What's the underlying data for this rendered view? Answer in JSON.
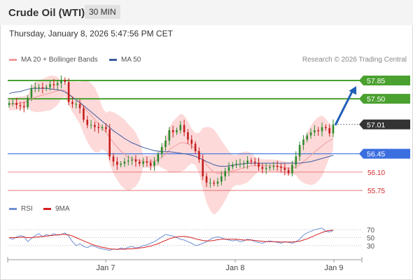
{
  "header": {
    "title": "Crude Oil (WTI)",
    "timeframe": "30 MIN",
    "datetime": "Thursday, January 8, 2026 5:47:56 PM CET"
  },
  "legend": {
    "ma20_label": "MA 20 + Bollinger Bands",
    "ma50_label": "MA 50",
    "credit": "Research © 2026 Trading Central",
    "rsi_label": "RSI",
    "ma9_label": "9MA"
  },
  "colors": {
    "band_fill": "#fdd9d9",
    "ma20": "#f29a9a",
    "ma50": "#3d5aa0",
    "up_candle": "#2e8b2e",
    "down_candle": "#c41e1e",
    "resistance": "#4aa12f",
    "pivot": "#3b6fe0",
    "support": "#e06060",
    "arrow": "#2160b8",
    "current_tag": "#333333",
    "rsi": "#6f8fd6",
    "rsi_ma": "#d62020"
  },
  "chart_data": [
    {
      "type": "candlestick",
      "title": "Crude Oil (WTI)",
      "timeframe": "30 MIN",
      "x_labels": [
        "Jan 7",
        "Jan 8",
        "Jan 9"
      ],
      "ylim": [
        55.55,
        58.05
      ],
      "price_levels": [
        {
          "value": 57.85,
          "label": "57.85",
          "kind": "resistance"
        },
        {
          "value": 57.5,
          "label": "57.50",
          "kind": "resistance"
        },
        {
          "value": 57.01,
          "label": "57.01",
          "kind": "current"
        },
        {
          "value": 56.45,
          "label": "56.45",
          "kind": "pivot"
        },
        {
          "value": 56.1,
          "label": "56.10",
          "kind": "support"
        },
        {
          "value": 55.75,
          "label": "55.75",
          "kind": "support"
        }
      ],
      "closes": [
        57.42,
        57.42,
        57.38,
        57.36,
        57.34,
        57.52,
        57.7,
        57.72,
        57.72,
        57.7,
        57.72,
        57.78,
        57.76,
        57.8,
        57.86,
        57.82,
        57.44,
        57.4,
        57.4,
        57.32,
        57.1,
        57.0,
        57.0,
        56.96,
        56.94,
        56.96,
        56.92,
        56.4,
        56.3,
        56.24,
        56.26,
        56.3,
        56.32,
        56.34,
        56.3,
        56.26,
        56.3,
        56.28,
        56.22,
        56.3,
        56.44,
        56.58,
        56.7,
        56.9,
        56.86,
        56.9,
        57.0,
        56.86,
        56.72,
        56.64,
        56.5,
        56.34,
        56.02,
        55.9,
        55.9,
        55.88,
        55.92,
        56.02,
        56.12,
        56.2,
        56.24,
        56.26,
        56.26,
        56.26,
        56.32,
        56.3,
        56.28,
        56.2,
        56.16,
        56.18,
        56.2,
        56.22,
        56.2,
        56.18,
        56.14,
        56.08,
        56.24,
        56.4,
        56.62,
        56.72,
        56.8,
        56.86,
        56.9,
        56.88,
        56.96,
        56.94,
        56.84,
        57.01
      ],
      "ma20": [
        57.4,
        57.4,
        57.41,
        57.42,
        57.43,
        57.46,
        57.5,
        57.53,
        57.55,
        57.57,
        57.59,
        57.61,
        57.63,
        57.65,
        57.67,
        57.66,
        57.6,
        57.54,
        57.48,
        57.42,
        57.34,
        57.26,
        57.18,
        57.1,
        57.02,
        56.94,
        56.86,
        56.76,
        56.66,
        56.58,
        56.5,
        56.44,
        56.38,
        56.36,
        56.34,
        56.32,
        56.31,
        56.3,
        56.3,
        56.31,
        56.34,
        56.38,
        56.44,
        56.52,
        56.58,
        56.62,
        56.66,
        56.66,
        56.64,
        56.6,
        56.54,
        56.46,
        56.36,
        56.24,
        56.16,
        56.1,
        56.08,
        56.07,
        56.08,
        56.1,
        56.12,
        56.14,
        56.16,
        56.18,
        56.2,
        56.22,
        56.22,
        56.23,
        56.23,
        56.22,
        56.22,
        56.22,
        56.21,
        56.2,
        56.19,
        56.17,
        56.18,
        56.2,
        56.24,
        56.3,
        56.36,
        56.42,
        56.48,
        56.54,
        56.6,
        56.66,
        56.7,
        56.74
      ],
      "ma50": [
        57.6,
        57.62,
        57.63,
        57.64,
        57.66,
        57.68,
        57.7,
        57.7,
        57.7,
        57.7,
        57.7,
        57.69,
        57.68,
        57.67,
        57.66,
        57.63,
        57.58,
        57.53,
        57.48,
        57.43,
        57.37,
        57.31,
        57.25,
        57.19,
        57.13,
        57.07,
        57.01,
        56.95,
        56.89,
        56.84,
        56.79,
        56.74,
        56.7,
        56.66,
        56.63,
        56.6,
        56.57,
        56.55,
        56.53,
        56.51,
        56.5,
        56.49,
        56.49,
        56.49,
        56.48,
        56.47,
        56.46,
        56.45,
        56.44,
        56.42,
        56.4,
        56.37,
        56.34,
        56.3,
        56.27,
        56.24,
        56.22,
        56.21,
        56.21,
        56.22,
        56.23,
        56.24,
        56.25,
        56.26,
        56.27,
        56.27,
        56.27,
        56.27,
        56.27,
        56.27,
        56.27,
        56.27,
        56.27,
        56.27,
        56.27,
        56.27,
        56.27,
        56.27,
        56.27,
        56.28,
        56.29,
        56.3,
        56.32,
        56.34,
        56.36,
        56.38,
        56.4,
        56.42
      ]
    },
    {
      "type": "line",
      "title": "RSI",
      "series": [
        {
          "name": "RSI",
          "values": [
            50,
            46,
            52,
            55,
            53,
            40,
            48,
            55,
            60,
            52,
            58,
            55,
            60,
            56,
            58,
            62,
            54,
            40,
            30,
            35,
            28,
            25,
            30,
            28,
            24,
            22,
            20,
            18,
            22,
            20,
            24,
            22,
            26,
            28,
            24,
            26,
            30,
            32,
            36,
            40,
            46,
            52,
            58,
            56,
            54,
            50,
            46,
            44,
            40,
            36,
            30,
            32,
            36,
            40,
            46,
            50,
            52,
            50,
            46,
            44,
            42,
            44,
            40,
            42,
            46,
            44,
            40,
            38,
            36,
            40,
            42,
            40,
            38,
            36,
            40,
            38,
            36,
            40,
            46,
            56,
            62,
            66,
            70,
            72,
            74,
            66,
            64,
            68
          ]
        },
        {
          "name": "9MA",
          "values": [
            50,
            50,
            50,
            51,
            51,
            50,
            50,
            51,
            52,
            53,
            54,
            55,
            56,
            57,
            58,
            58,
            57,
            54,
            50,
            46,
            42,
            38,
            34,
            31,
            28,
            26,
            24,
            22,
            21,
            21,
            21,
            21,
            22,
            22,
            23,
            24,
            25,
            27,
            29,
            32,
            35,
            39,
            43,
            47,
            50,
            52,
            53,
            53,
            52,
            50,
            47,
            45,
            43,
            42,
            42,
            43,
            45,
            46,
            46,
            46,
            46,
            46,
            45,
            44,
            44,
            44,
            43,
            42,
            41,
            40,
            40,
            40,
            40,
            39,
            39,
            39,
            39,
            40,
            41,
            44,
            47,
            51,
            55,
            59,
            63,
            66,
            68,
            69
          ]
        }
      ],
      "yticks": [
        70,
        50,
        30
      ],
      "ylim": [
        0,
        100
      ]
    }
  ]
}
